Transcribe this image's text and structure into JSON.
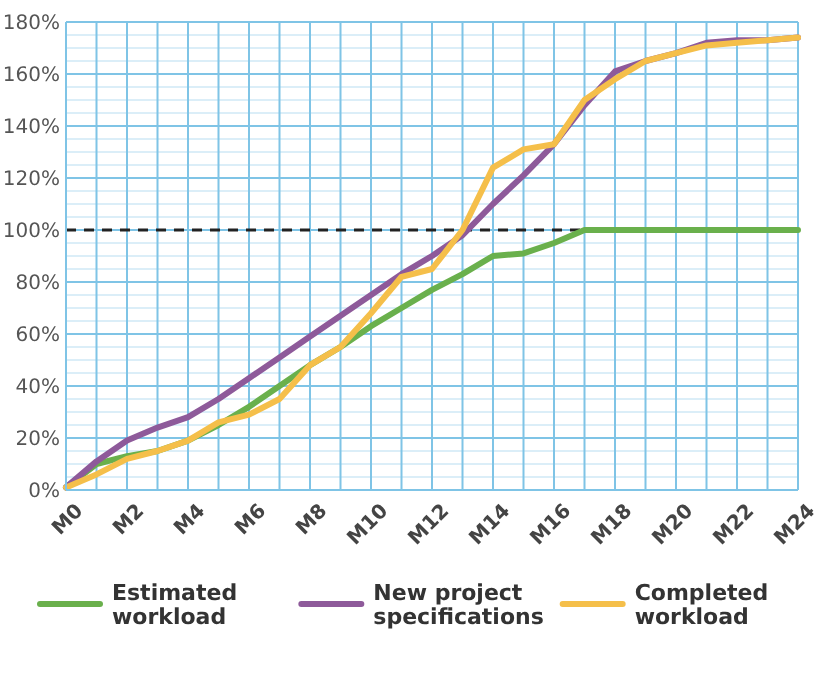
{
  "chart_data": {
    "type": "line",
    "categories": [
      "M0",
      null,
      "M2",
      null,
      "M4",
      null,
      "M6",
      null,
      "M8",
      null,
      "M10",
      null,
      "M12",
      null,
      "M14",
      null,
      "M16",
      null,
      "M18",
      null,
      "M20",
      null,
      "M22",
      null,
      "M24"
    ],
    "series": [
      {
        "name": "Estimated workload",
        "color": "#6ab04c",
        "values": [
          1,
          10,
          13,
          15,
          19,
          25,
          32,
          40,
          48,
          55,
          63,
          70,
          77,
          83,
          90,
          91,
          95,
          100,
          100,
          100,
          100,
          100,
          100,
          100,
          100
        ]
      },
      {
        "name": "New project specifications",
        "color": "#8e5a9a",
        "values": [
          1,
          11,
          19,
          24,
          28,
          35,
          43,
          51,
          59,
          67,
          75,
          83,
          90,
          98,
          110,
          121,
          133,
          148,
          161,
          165,
          168,
          172,
          173,
          173,
          174
        ]
      },
      {
        "name": "Completed workload",
        "color": "#f5bf4a",
        "values": [
          1,
          6,
          12,
          15,
          19,
          26,
          29,
          35,
          48,
          55,
          68,
          82,
          85,
          100,
          124,
          131,
          133,
          150,
          158,
          165,
          168,
          171,
          172,
          173,
          174
        ]
      }
    ],
    "ylim": [
      0,
      180
    ],
    "yticks": [
      {
        "value": 0,
        "label": "0%"
      },
      {
        "value": 5,
        "label": null
      },
      {
        "value": 10,
        "label": null
      },
      {
        "value": 15,
        "label": null
      },
      {
        "value": 20,
        "label": "20%"
      },
      {
        "value": 25,
        "label": null
      },
      {
        "value": 30,
        "label": null
      },
      {
        "value": 35,
        "label": null
      },
      {
        "value": 40,
        "label": "40%"
      },
      {
        "value": 45,
        "label": null
      },
      {
        "value": 50,
        "label": null
      },
      {
        "value": 55,
        "label": null
      },
      {
        "value": 60,
        "label": "60%"
      },
      {
        "value": 65,
        "label": null
      },
      {
        "value": 70,
        "label": null
      },
      {
        "value": 75,
        "label": null
      },
      {
        "value": 80,
        "label": "80%"
      },
      {
        "value": 85,
        "label": null
      },
      {
        "value": 90,
        "label": null
      },
      {
        "value": 95,
        "label": null
      },
      {
        "value": 100,
        "label": "100%"
      },
      {
        "value": 105,
        "label": null
      },
      {
        "value": 110,
        "label": null
      },
      {
        "value": 115,
        "label": null
      },
      {
        "value": 120,
        "label": "120%"
      },
      {
        "value": 125,
        "label": null
      },
      {
        "value": 130,
        "label": null
      },
      {
        "value": 135,
        "label": null
      },
      {
        "value": 140,
        "label": "140%"
      },
      {
        "value": 145,
        "label": null
      },
      {
        "value": 150,
        "label": null
      },
      {
        "value": 155,
        "label": null
      },
      {
        "value": 160,
        "label": "160%"
      },
      {
        "value": 165,
        "label": null
      },
      {
        "value": 170,
        "label": null
      },
      {
        "value": 175,
        "label": null
      },
      {
        "value": 180,
        "label": "180%"
      }
    ],
    "grid": true,
    "ref_lines": [
      {
        "axis": "y",
        "value": 100,
        "color": "#222222",
        "line_style": "dashed"
      }
    ],
    "legend": "bottom",
    "line_style": "solid"
  }
}
